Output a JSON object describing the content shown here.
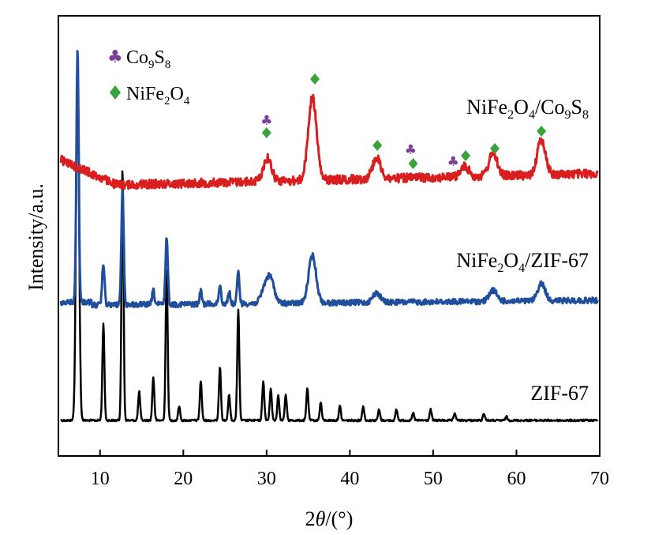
{
  "chart_data": {
    "type": "line",
    "xlabel": "2θ/(°)",
    "ylabel": "Intensity/a.u.",
    "xlim": [
      5,
      70
    ],
    "xticks": [
      "10",
      "20",
      "30",
      "40",
      "50",
      "60",
      "70"
    ],
    "grid": false,
    "series": [
      {
        "name": "ZIF-67",
        "color": "#000000",
        "baseline": 0.0,
        "peaks": [
          {
            "x": 7.3,
            "y": 1.0
          },
          {
            "x": 10.4,
            "y": 0.27
          },
          {
            "x": 12.7,
            "y": 0.7
          },
          {
            "x": 14.7,
            "y": 0.08
          },
          {
            "x": 16.4,
            "y": 0.12
          },
          {
            "x": 18.0,
            "y": 0.42
          },
          {
            "x": 19.5,
            "y": 0.04
          },
          {
            "x": 22.1,
            "y": 0.11
          },
          {
            "x": 24.4,
            "y": 0.15
          },
          {
            "x": 25.5,
            "y": 0.07
          },
          {
            "x": 26.6,
            "y": 0.31
          },
          {
            "x": 29.6,
            "y": 0.11
          },
          {
            "x": 30.5,
            "y": 0.09
          },
          {
            "x": 31.4,
            "y": 0.07
          },
          {
            "x": 32.3,
            "y": 0.07
          },
          {
            "x": 34.9,
            "y": 0.09
          },
          {
            "x": 36.5,
            "y": 0.05
          },
          {
            "x": 38.8,
            "y": 0.04
          },
          {
            "x": 41.6,
            "y": 0.04
          },
          {
            "x": 43.5,
            "y": 0.03
          },
          {
            "x": 45.6,
            "y": 0.03
          },
          {
            "x": 47.6,
            "y": 0.02
          },
          {
            "x": 49.7,
            "y": 0.03
          },
          {
            "x": 52.6,
            "y": 0.02
          },
          {
            "x": 56.1,
            "y": 0.02
          },
          {
            "x": 58.8,
            "y": 0.01
          }
        ]
      },
      {
        "name": "NiFe2O4/ZIF-67",
        "color": "#1f4e9c",
        "baseline": 1.0,
        "peaks": [
          {
            "x": 7.3,
            "y": 3.2
          },
          {
            "x": 10.4,
            "y": 0.53
          },
          {
            "x": 12.7,
            "y": 1.46
          },
          {
            "x": 16.4,
            "y": 0.18
          },
          {
            "x": 18.0,
            "y": 0.85
          },
          {
            "x": 22.1,
            "y": 0.16
          },
          {
            "x": 24.4,
            "y": 0.24
          },
          {
            "x": 25.5,
            "y": 0.15
          },
          {
            "x": 26.6,
            "y": 0.4
          },
          {
            "x": 29.8,
            "y": 0.18
          },
          {
            "x": 30.5,
            "y": 0.28
          },
          {
            "x": 35.5,
            "y": 0.6
          },
          {
            "x": 43.2,
            "y": 0.12
          },
          {
            "x": 57.2,
            "y": 0.14
          },
          {
            "x": 63.0,
            "y": 0.22
          }
        ]
      },
      {
        "name": "NiFe2O4/Co9S8",
        "color": "#d81e1e",
        "baseline": 2.4,
        "peaks": [
          {
            "x": 30.1,
            "y": 0.28
          },
          {
            "x": 35.5,
            "y": 1.0
          },
          {
            "x": 43.2,
            "y": 0.25
          },
          {
            "x": 53.8,
            "y": 0.12
          },
          {
            "x": 57.2,
            "y": 0.28
          },
          {
            "x": 63.0,
            "y": 0.42
          }
        ]
      }
    ],
    "markers": {
      "Co9S8": [
        30.0,
        47.3,
        52.4
      ],
      "NiFe2O4": [
        30.0,
        35.8,
        43.3,
        47.6,
        53.9,
        57.4,
        63.0
      ]
    },
    "legend": [
      {
        "symbol": "club",
        "label_main": "Co",
        "sub1": "9",
        "label_mid": "S",
        "sub2": "8",
        "color": "#7b3f98"
      },
      {
        "symbol": "diamond",
        "label_main": "NiFe",
        "sub1": "2",
        "label_mid": "O",
        "sub2": "4",
        "color": "#3aa23a"
      }
    ],
    "labels": {
      "top": "NiFe₂O₄/Co₉S₈",
      "middle": "NiFe₂O₄/ZIF-67",
      "bottom": "ZIF-67"
    }
  }
}
